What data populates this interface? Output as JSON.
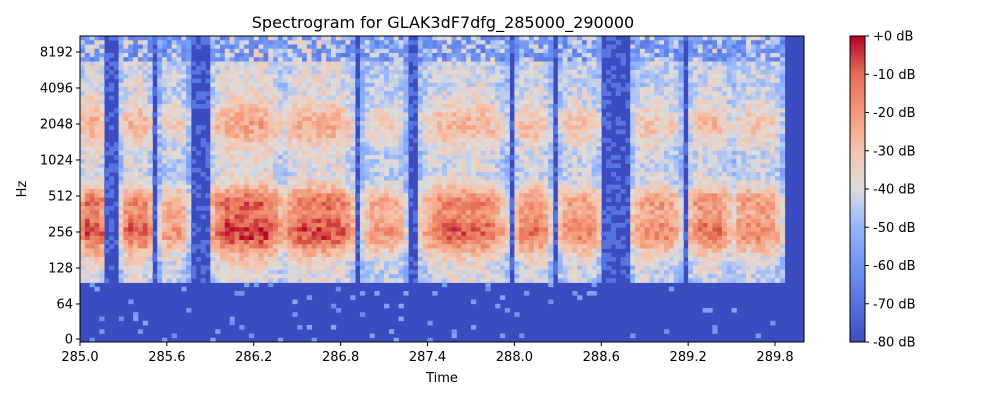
{
  "chart_data": {
    "type": "heatmap",
    "title": "Spectrogram for GLAK3dF7dfg_285000_290000",
    "xlabel": "Time",
    "ylabel": "Hz",
    "xlim": [
      285.0,
      290.0
    ],
    "x_ticks": [
      "285.0",
      "285.6",
      "286.2",
      "286.8",
      "287.4",
      "288.0",
      "288.6",
      "289.2",
      "289.8"
    ],
    "x_tick_values": [
      285.0,
      285.6,
      286.2,
      286.8,
      287.4,
      288.0,
      288.6,
      289.2,
      289.8
    ],
    "y_scale": "log-like (0 to 11025 Hz)",
    "y_ticks": [
      "0",
      "64",
      "128",
      "256",
      "512",
      "1024",
      "2048",
      "4096",
      "8192"
    ],
    "y_tick_values": [
      0,
      64,
      128,
      256,
      512,
      1024,
      2048,
      4096,
      8192
    ],
    "colormap": "coolwarm",
    "colorbar": {
      "range_db": [
        -80,
        0
      ],
      "ticks": [
        "+0 dB",
        "-10 dB",
        "-20 dB",
        "-30 dB",
        "-40 dB",
        "-50 dB",
        "-60 dB",
        "-70 dB",
        "-80 dB"
      ],
      "tick_values": [
        0,
        -10,
        -20,
        -30,
        -40,
        -50,
        -60,
        -70,
        -80
      ]
    },
    "silent_gaps_s": [
      [
        288.62,
        288.78
      ]
    ],
    "active_until_s": 289.85,
    "floor_color": "#3b4cc0",
    "peak_color": "#b40426"
  }
}
